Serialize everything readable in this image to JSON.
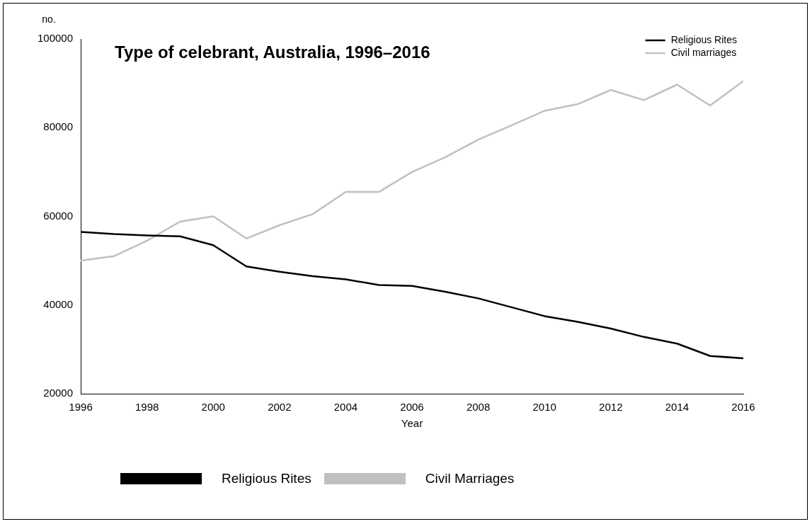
{
  "chart_data": {
    "type": "line",
    "title": "Type of celebrant, Australia, 1996–2016",
    "xlabel": "Year",
    "ylabel": "no.",
    "x": [
      1996,
      1997,
      1998,
      1999,
      2000,
      2001,
      2002,
      2003,
      2004,
      2005,
      2006,
      2007,
      2008,
      2009,
      2010,
      2011,
      2012,
      2013,
      2014,
      2015,
      2016
    ],
    "series": [
      {
        "name": "Religious Rites",
        "color": "#000000",
        "values": [
          56500,
          56000,
          55700,
          55500,
          53500,
          48700,
          47500,
          46500,
          45800,
          44500,
          44300,
          43000,
          41500,
          39500,
          37500,
          36200,
          34700,
          32800,
          31300,
          28500,
          28000
        ]
      },
      {
        "name": "Civil marriages",
        "color": "#c0c0c0",
        "values": [
          50000,
          51000,
          54500,
          58800,
          60000,
          55000,
          58000,
          60500,
          65500,
          65500,
          70000,
          73300,
          77300,
          80500,
          83800,
          85300,
          88500,
          86200,
          89700,
          85000,
          90500
        ]
      }
    ],
    "xlim": [
      1996,
      2016
    ],
    "xticks": [
      1996,
      1998,
      2000,
      2002,
      2004,
      2006,
      2008,
      2010,
      2012,
      2014,
      2016
    ],
    "ylim": [
      20000,
      100000
    ],
    "yticks": [
      20000,
      40000,
      60000,
      80000,
      100000
    ],
    "grid": false,
    "legend": "top right",
    "marker": "none",
    "line_style": "solid",
    "annotations": [
      "Religious Rites",
      "Civil Marriages"
    ]
  }
}
